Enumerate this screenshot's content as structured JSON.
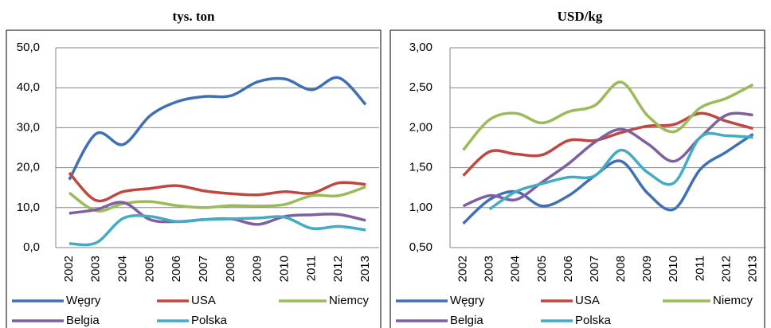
{
  "chart_data": [
    {
      "type": "line",
      "title": "tys. ton",
      "categories": [
        "2002",
        "2003",
        "2004",
        "2005",
        "2006",
        "2007",
        "2008",
        "2009",
        "2010",
        "2011",
        "2012",
        "2013"
      ],
      "ylim": [
        0,
        50
      ],
      "yticks": [
        {
          "value": 0,
          "label": "0,0"
        },
        {
          "value": 10,
          "label": "10,0"
        },
        {
          "value": 20,
          "label": "20,0"
        },
        {
          "value": 30,
          "label": "30,0"
        },
        {
          "value": 40,
          "label": "40,0"
        },
        {
          "value": 50,
          "label": "50,0"
        }
      ],
      "grid": true,
      "series": [
        {
          "name": "Węgry",
          "color": "#3f70b5",
          "values": [
            17,
            28.5,
            25.8,
            33,
            36.5,
            37.8,
            38,
            41.5,
            42.2,
            39.5,
            42.5,
            35.8
          ]
        },
        {
          "name": "USA",
          "color": "#c0463f",
          "values": [
            18.7,
            11.8,
            14,
            14.8,
            15.5,
            14.2,
            13.5,
            13.2,
            14,
            13.6,
            16.2,
            15.8
          ]
        },
        {
          "name": "Niemcy",
          "color": "#9bbb59",
          "values": [
            13.7,
            9.2,
            11,
            11.5,
            10.5,
            10,
            10.5,
            10.4,
            10.8,
            13,
            13,
            15.2
          ]
        },
        {
          "name": "Belgia",
          "color": "#7f5fa1",
          "values": [
            8.6,
            9.5,
            11.3,
            7,
            6.5,
            7,
            7.2,
            5.8,
            7.8,
            8.2,
            8.3,
            6.8
          ]
        },
        {
          "name": "Polska",
          "color": "#43acc4",
          "values": [
            1,
            1.2,
            7.3,
            7.8,
            6.5,
            7,
            7.2,
            7.4,
            7.6,
            4.8,
            5.3,
            4.4
          ]
        }
      ]
    },
    {
      "type": "line",
      "title": "USD/kg",
      "categories": [
        "2002",
        "2003",
        "2004",
        "2005",
        "2006",
        "2007",
        "2008",
        "2009",
        "2010",
        "2011",
        "2012",
        "2013"
      ],
      "ylim": [
        0.5,
        3
      ],
      "yticks": [
        {
          "value": 0.5,
          "label": "0,50"
        },
        {
          "value": 1,
          "label": "1,00"
        },
        {
          "value": 1.5,
          "label": "1,50"
        },
        {
          "value": 2,
          "label": "2,00"
        },
        {
          "value": 2.5,
          "label": "2,50"
        },
        {
          "value": 3,
          "label": "3,00"
        }
      ],
      "grid": true,
      "series": [
        {
          "name": "Węgry",
          "color": "#3f70b5",
          "values": [
            0.8,
            1.1,
            1.2,
            1.02,
            1.15,
            1.4,
            1.58,
            1.18,
            0.98,
            1.48,
            1.7,
            1.92
          ]
        },
        {
          "name": "USA",
          "color": "#c0463f",
          "values": [
            1.4,
            1.7,
            1.67,
            1.66,
            1.84,
            1.84,
            1.94,
            2.02,
            2.04,
            2.18,
            2.08,
            1.99
          ]
        },
        {
          "name": "Niemcy",
          "color": "#9bbb59",
          "values": [
            1.72,
            2.1,
            2.18,
            2.06,
            2.2,
            2.28,
            2.57,
            2.15,
            1.95,
            2.25,
            2.37,
            2.54
          ]
        },
        {
          "name": "Belgia",
          "color": "#7f5fa1",
          "values": [
            1.02,
            1.15,
            1.1,
            1.32,
            1.55,
            1.82,
            1.98,
            1.8,
            1.58,
            1.88,
            2.16,
            2.16
          ]
        },
        {
          "name": "Polska",
          "color": "#43acc4",
          "values": [
            null,
            0.98,
            1.2,
            1.3,
            1.38,
            1.4,
            1.72,
            1.44,
            1.31,
            1.88,
            1.9,
            1.88
          ]
        }
      ]
    }
  ]
}
